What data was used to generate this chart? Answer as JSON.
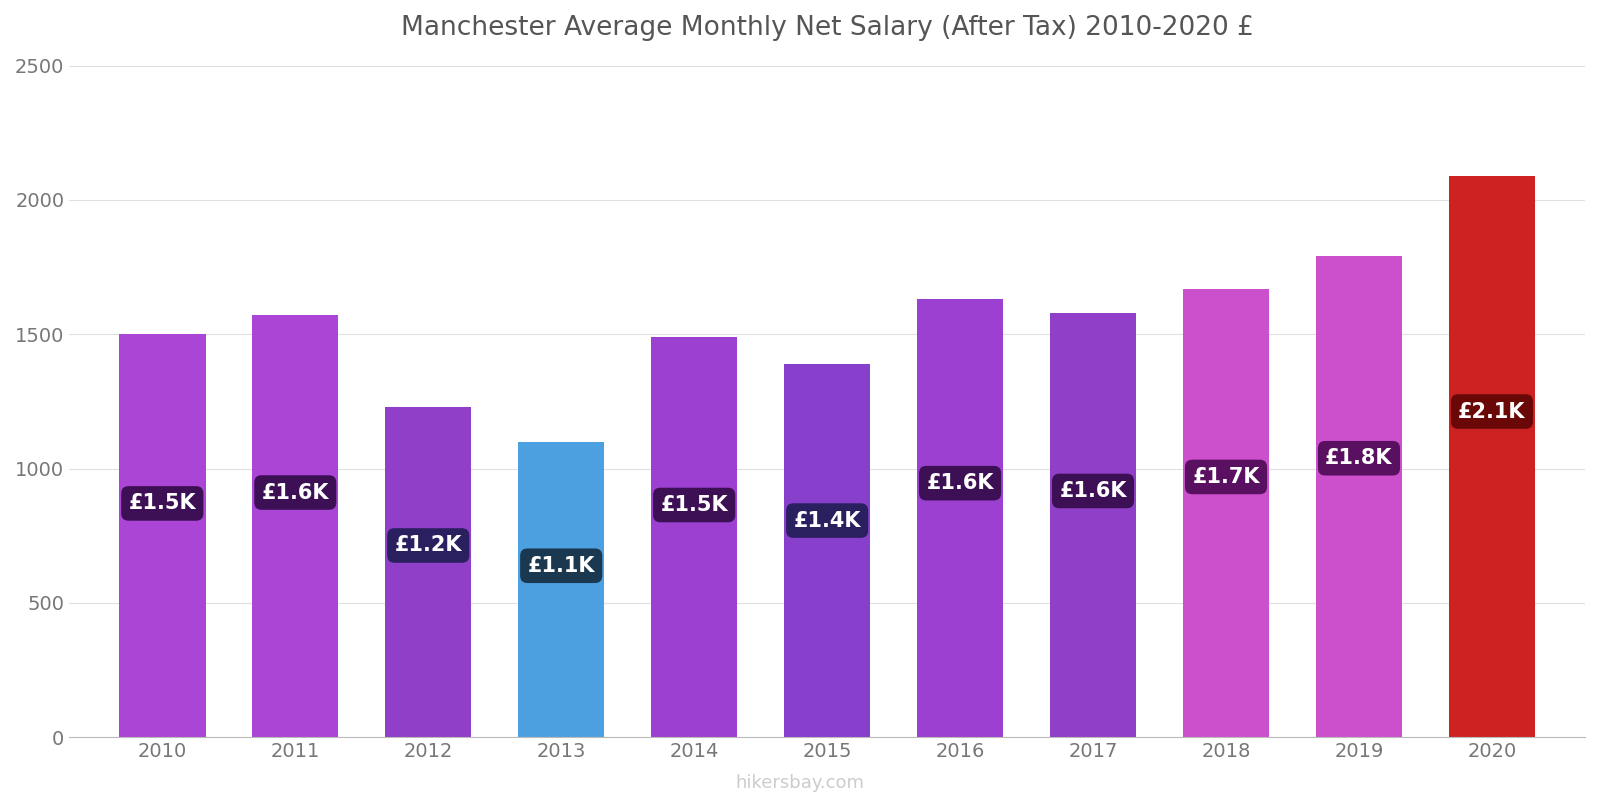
{
  "title": "Manchester Average Monthly Net Salary (After Tax) 2010-2020 £",
  "years": [
    2010,
    2011,
    2012,
    2013,
    2014,
    2015,
    2016,
    2017,
    2018,
    2019,
    2020
  ],
  "values": [
    1500,
    1570,
    1230,
    1100,
    1490,
    1390,
    1630,
    1580,
    1670,
    1790,
    2090
  ],
  "labels": [
    "£1.5K",
    "£1.6K",
    "£1.2K",
    "£1.1K",
    "£1.5K",
    "£1.4K",
    "£1.6K",
    "£1.6K",
    "£1.7K",
    "£1.8K",
    "£2.1K"
  ],
  "bar_colors": [
    "#AB45D5",
    "#AB45D5",
    "#9040C8",
    "#4DA0E0",
    "#9B40D0",
    "#8840CC",
    "#9B40D0",
    "#9040C8",
    "#CC50CC",
    "#CC50CC",
    "#CC2222"
  ],
  "label_bg_colors": [
    "#3D1055",
    "#3D1055",
    "#2A2060",
    "#1A3850",
    "#3D1055",
    "#2A2060",
    "#3D1055",
    "#3D1055",
    "#5A1060",
    "#5A1060",
    "#6A0808"
  ],
  "ylim": [
    0,
    2500
  ],
  "yticks": [
    0,
    500,
    1000,
    1500,
    2000,
    2500
  ],
  "watermark": "hikersbay.com",
  "background_color": "#ffffff",
  "grid_color": "#e0e0e0",
  "title_color": "#555555"
}
